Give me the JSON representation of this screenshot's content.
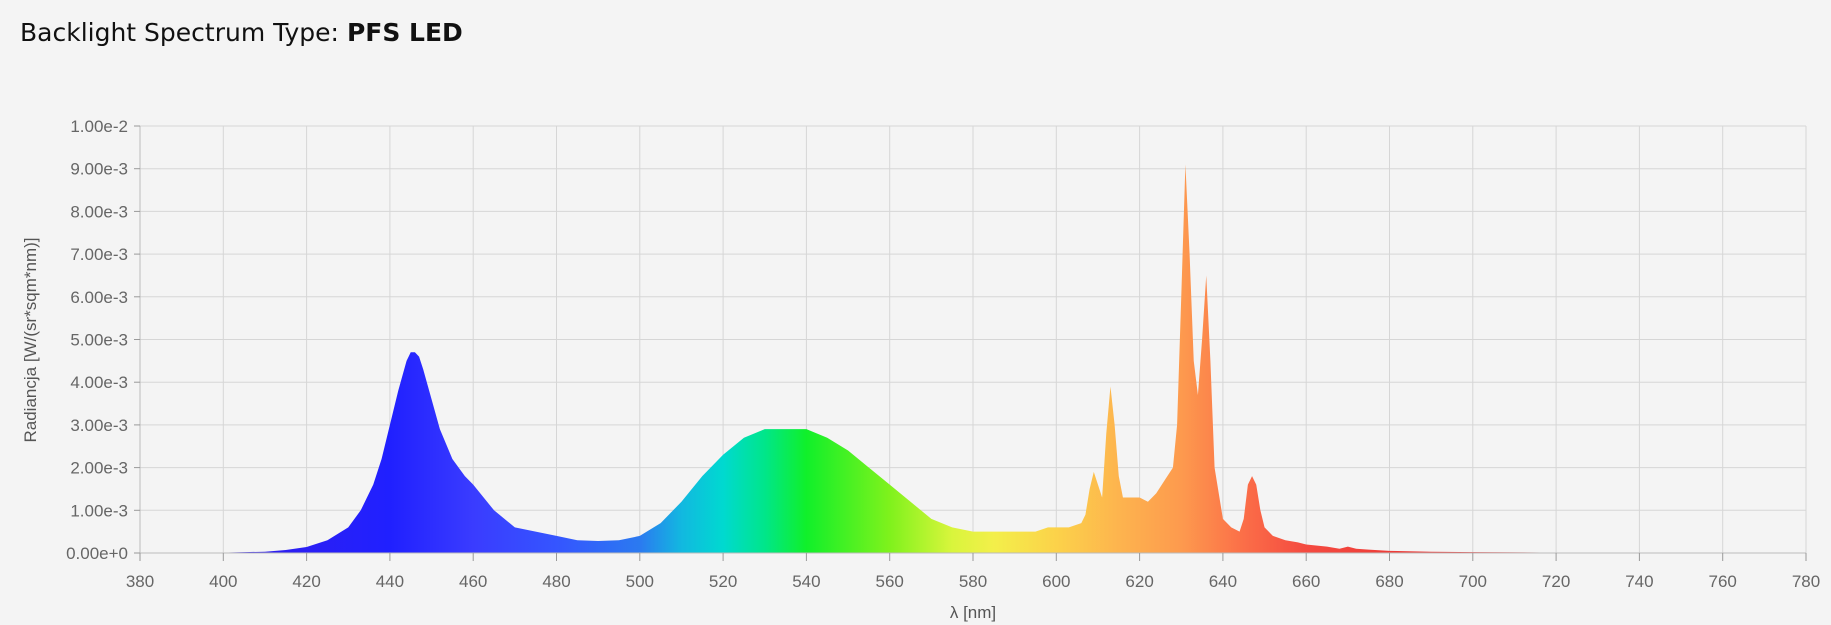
{
  "header": {
    "label": "Backlight Spectrum Type:",
    "value": "PFS LED"
  },
  "chart_data": {
    "type": "area",
    "title": "",
    "xlabel": "λ [nm]",
    "ylabel": "Radiancja [W/(sr*sqm*nm)]",
    "xlim": [
      380,
      780
    ],
    "ylim": [
      0,
      0.01
    ],
    "grid": true,
    "legend": "none",
    "x_ticks": [
      380,
      400,
      420,
      440,
      460,
      480,
      500,
      520,
      540,
      560,
      580,
      600,
      620,
      640,
      660,
      680,
      700,
      720,
      740,
      760,
      780
    ],
    "x_tick_labels": [
      "380",
      "400",
      "420",
      "440",
      "460",
      "480",
      "500",
      "520",
      "540",
      "560",
      "580",
      "600",
      "620",
      "640",
      "660",
      "680",
      "700",
      "720",
      "740",
      "760",
      "780"
    ],
    "y_ticks": [
      0,
      0.001,
      0.002,
      0.003,
      0.004,
      0.005,
      0.006,
      0.007,
      0.008,
      0.009,
      0.01
    ],
    "y_tick_labels": [
      "0.00e+0",
      "1.00e-3",
      "2.00e-3",
      "3.00e-3",
      "4.00e-3",
      "5.00e-3",
      "6.00e-3",
      "7.00e-3",
      "8.00e-3",
      "9.00e-3",
      "1.00e-2"
    ],
    "fill": "wavelength-colored spectrum gradient",
    "x": [
      380,
      400,
      410,
      415,
      420,
      425,
      430,
      433,
      436,
      438,
      440,
      442,
      444,
      445,
      446,
      447,
      448,
      450,
      452,
      455,
      458,
      460,
      465,
      470,
      475,
      480,
      485,
      490,
      495,
      500,
      505,
      510,
      515,
      520,
      525,
      530,
      535,
      540,
      545,
      550,
      555,
      560,
      565,
      570,
      575,
      580,
      585,
      590,
      595,
      598,
      600,
      603,
      606,
      607,
      608,
      609,
      610,
      611,
      612,
      613,
      614,
      615,
      616,
      618,
      620,
      622,
      624,
      626,
      628,
      629,
      630,
      631,
      632,
      633,
      634,
      635,
      636,
      637,
      638,
      640,
      642,
      644,
      645,
      646,
      647,
      648,
      649,
      650,
      651,
      652,
      655,
      658,
      660,
      665,
      668,
      670,
      672,
      675,
      680,
      690,
      700,
      720,
      740,
      760,
      780
    ],
    "y": [
      0,
      1e-05,
      3e-05,
      7e-05,
      0.00014,
      0.0003,
      0.0006,
      0.001,
      0.0016,
      0.0022,
      0.003,
      0.0038,
      0.0045,
      0.0047,
      0.0047,
      0.0046,
      0.0043,
      0.0036,
      0.0029,
      0.0022,
      0.0018,
      0.0016,
      0.001,
      0.0006,
      0.0005,
      0.0004,
      0.0003,
      0.00028,
      0.0003,
      0.0004,
      0.0007,
      0.0012,
      0.0018,
      0.0023,
      0.0027,
      0.0029,
      0.0029,
      0.0029,
      0.0027,
      0.0024,
      0.002,
      0.0016,
      0.0012,
      0.0008,
      0.0006,
      0.0005,
      0.0005,
      0.0005,
      0.0005,
      0.0006,
      0.0006,
      0.0006,
      0.0007,
      0.0009,
      0.0015,
      0.0019,
      0.0016,
      0.0013,
      0.0028,
      0.0039,
      0.003,
      0.0018,
      0.0013,
      0.0013,
      0.0013,
      0.0012,
      0.0014,
      0.0017,
      0.002,
      0.003,
      0.006,
      0.0091,
      0.007,
      0.0045,
      0.0037,
      0.005,
      0.0065,
      0.0045,
      0.002,
      0.0008,
      0.0006,
      0.0005,
      0.0008,
      0.0016,
      0.0018,
      0.0016,
      0.001,
      0.0006,
      0.0005,
      0.0004,
      0.0003,
      0.00025,
      0.0002,
      0.00015,
      0.0001,
      0.00015,
      0.0001,
      8e-05,
      5e-05,
      3e-05,
      2e-05,
      1e-05,
      1e-05,
      1e-05,
      0
    ]
  }
}
